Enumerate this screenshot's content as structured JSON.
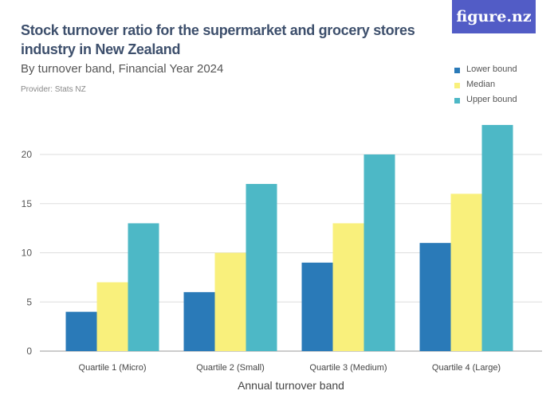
{
  "header": {
    "title": "Stock turnover ratio for the supermarket and grocery stores industry in New Zealand",
    "subtitle": "By turnover band, Financial Year 2024",
    "provider": "Provider: Stats NZ",
    "logo": "figure.nz"
  },
  "colors": {
    "lower": "#2a7ab8",
    "median": "#f9f07c",
    "upper": "#4db8c6",
    "logo_bg": "#525cc6"
  },
  "chart_data": {
    "type": "bar",
    "title": "Stock turnover ratio for the supermarket and grocery stores industry in New Zealand",
    "subtitle": "By turnover band, Financial Year 2024",
    "xlabel": "Annual turnover band",
    "ylabel": "",
    "categories": [
      "Quartile 1 (Micro)",
      "Quartile 2 (Small)",
      "Quartile 3 (Medium)",
      "Quartile 4 (Large)"
    ],
    "series": [
      {
        "name": "Lower bound",
        "values": [
          4,
          6,
          9,
          11
        ]
      },
      {
        "name": "Median",
        "values": [
          7,
          10,
          13,
          16
        ]
      },
      {
        "name": "Upper bound",
        "values": [
          13,
          17,
          20,
          23
        ]
      }
    ],
    "yticks": [
      0,
      5,
      10,
      15,
      20
    ],
    "ylim": [
      0,
      24
    ],
    "grid": true,
    "legend": "top-right"
  }
}
